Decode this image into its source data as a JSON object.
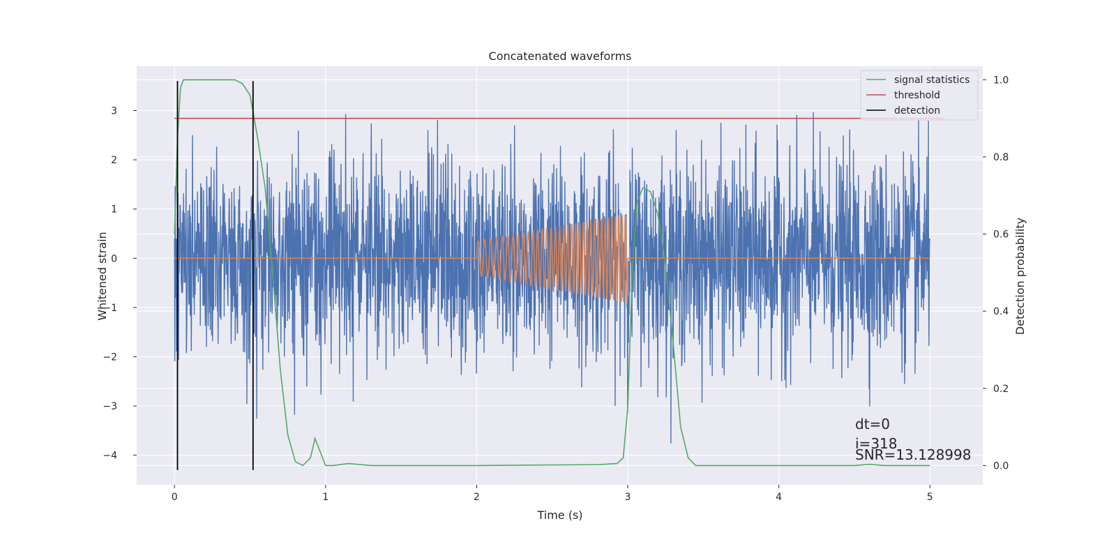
{
  "chart_data": {
    "type": "line",
    "title": "Concatenated waveforms",
    "xlabel": "Time (s)",
    "ylabel_left": "Whitened strain",
    "ylabel_right": "Detection probability",
    "xlim": [
      -0.25,
      5.35
    ],
    "ylim_left": [
      -4.6,
      3.9
    ],
    "ylim_right": [
      -0.05,
      1.035
    ],
    "x_ticks": [
      0,
      1,
      2,
      3,
      4,
      5
    ],
    "y_left_ticks": [
      -4,
      -3,
      -2,
      -1,
      0,
      1,
      2,
      3
    ],
    "y_right_ticks": [
      0.0,
      0.2,
      0.4,
      0.6,
      0.8,
      1.0
    ],
    "grid": true,
    "legend_position": "top-right",
    "series": [
      {
        "name": "",
        "axis": "left",
        "kind": "noise",
        "color": "#4c72b0",
        "x_range": [
          0,
          5
        ],
        "typical_amplitude": 1.0,
        "min": -4.3,
        "max": 3.6
      },
      {
        "name": "",
        "axis": "left",
        "kind": "chirp",
        "color": "#dd8452",
        "x_range": [
          2.0,
          3.0
        ],
        "amplitude_start": 0.35,
        "amplitude_end": 0.9,
        "baseline": 0
      },
      {
        "name": "signal statistics",
        "axis": "right",
        "color": "#55a868",
        "x": [
          0.0,
          0.02,
          0.04,
          0.06,
          0.1,
          0.2,
          0.3,
          0.4,
          0.45,
          0.5,
          0.55,
          0.6,
          0.65,
          0.7,
          0.75,
          0.8,
          0.85,
          0.9,
          0.93,
          0.96,
          1.0,
          1.05,
          1.15,
          1.3,
          2.0,
          2.8,
          2.93,
          2.97,
          3.0,
          3.03,
          3.06,
          3.1,
          3.15,
          3.2,
          3.25,
          3.3,
          3.35,
          3.4,
          3.45,
          3.55,
          4.5,
          4.6,
          4.7,
          5.0
        ],
        "y": [
          0.6,
          0.85,
          0.98,
          1.0,
          1.0,
          1.0,
          1.0,
          1.0,
          0.99,
          0.96,
          0.85,
          0.72,
          0.5,
          0.25,
          0.08,
          0.01,
          0.0,
          0.02,
          0.07,
          0.04,
          0.0,
          0.0,
          0.005,
          0.0,
          0.0,
          0.002,
          0.005,
          0.02,
          0.15,
          0.5,
          0.68,
          0.72,
          0.71,
          0.65,
          0.52,
          0.32,
          0.1,
          0.02,
          0.0,
          0.0,
          0.0,
          0.003,
          0.0,
          0.0
        ]
      },
      {
        "name": "threshold",
        "axis": "right",
        "color": "#c44e52",
        "x": [
          0.0,
          5.1
        ],
        "y": [
          0.9,
          0.9
        ]
      },
      {
        "name": "detection",
        "axis": "left",
        "kind": "vlines",
        "color": "#000000",
        "x": [
          0.02,
          0.52
        ],
        "y_range": [
          -4.3,
          3.6
        ]
      }
    ],
    "annotations": [
      "dt=0",
      "i=318",
      "SNR=13.128998"
    ]
  }
}
